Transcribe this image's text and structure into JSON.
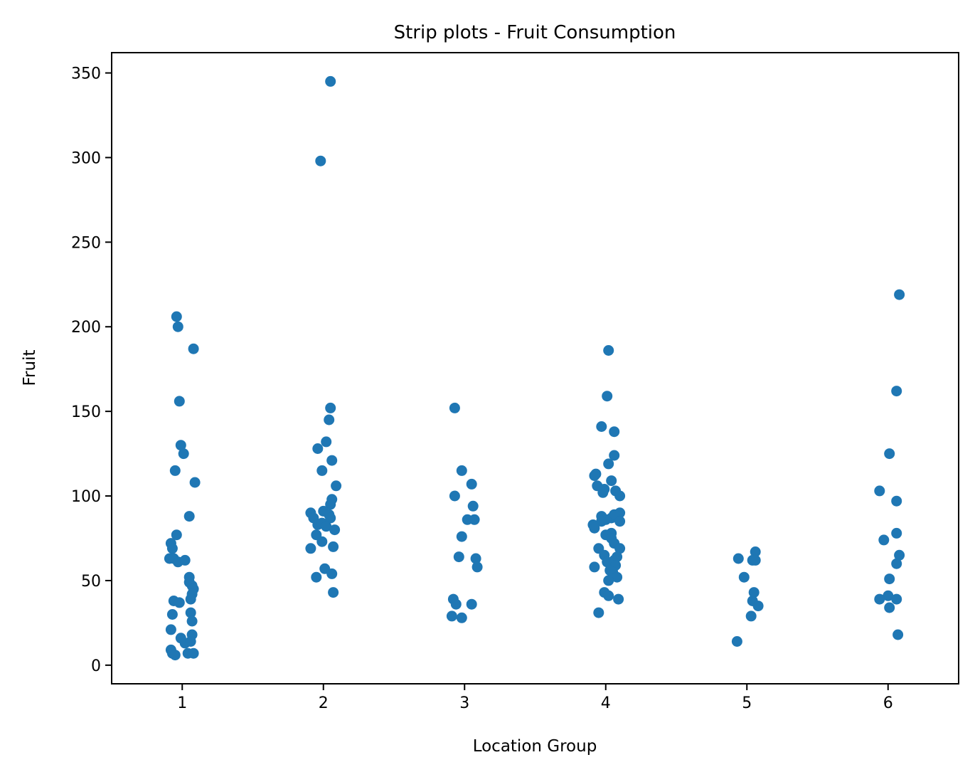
{
  "chart_data": {
    "type": "scatter",
    "subtype": "strip",
    "title": "Strip plots - Fruit Consumption",
    "xlabel": "Location Group",
    "ylabel": "Fruit",
    "categories": [
      "1",
      "2",
      "3",
      "4",
      "5",
      "6"
    ],
    "xlim": [
      0.5,
      6.5
    ],
    "ylim": [
      -11,
      362
    ],
    "yticks": [
      0,
      50,
      100,
      150,
      200,
      250,
      300,
      350
    ],
    "grid": false,
    "legend": false,
    "point_color": "#1f77b4",
    "points": [
      {
        "x": 0.96,
        "y": 206
      },
      {
        "x": 0.97,
        "y": 200
      },
      {
        "x": 1.08,
        "y": 187
      },
      {
        "x": 0.98,
        "y": 156
      },
      {
        "x": 0.99,
        "y": 130
      },
      {
        "x": 1.01,
        "y": 125
      },
      {
        "x": 0.95,
        "y": 115
      },
      {
        "x": 1.09,
        "y": 108
      },
      {
        "x": 1.05,
        "y": 88
      },
      {
        "x": 0.96,
        "y": 77
      },
      {
        "x": 0.92,
        "y": 72
      },
      {
        "x": 0.93,
        "y": 69
      },
      {
        "x": 0.91,
        "y": 63
      },
      {
        "x": 0.94,
        "y": 63
      },
      {
        "x": 0.97,
        "y": 61
      },
      {
        "x": 1.02,
        "y": 62
      },
      {
        "x": 1.05,
        "y": 52
      },
      {
        "x": 1.05,
        "y": 49
      },
      {
        "x": 1.07,
        "y": 47
      },
      {
        "x": 1.08,
        "y": 45
      },
      {
        "x": 1.07,
        "y": 42
      },
      {
        "x": 1.06,
        "y": 39
      },
      {
        "x": 0.94,
        "y": 38
      },
      {
        "x": 0.98,
        "y": 37
      },
      {
        "x": 1.06,
        "y": 31
      },
      {
        "x": 0.93,
        "y": 30
      },
      {
        "x": 1.07,
        "y": 26
      },
      {
        "x": 0.92,
        "y": 21
      },
      {
        "x": 1.07,
        "y": 18
      },
      {
        "x": 0.99,
        "y": 16
      },
      {
        "x": 1.02,
        "y": 13
      },
      {
        "x": 1.06,
        "y": 14
      },
      {
        "x": 0.92,
        "y": 9
      },
      {
        "x": 0.93,
        "y": 7
      },
      {
        "x": 0.95,
        "y": 6
      },
      {
        "x": 1.04,
        "y": 7
      },
      {
        "x": 1.08,
        "y": 7
      },
      {
        "x": 2.05,
        "y": 345
      },
      {
        "x": 1.98,
        "y": 298
      },
      {
        "x": 2.05,
        "y": 152
      },
      {
        "x": 2.04,
        "y": 145
      },
      {
        "x": 2.02,
        "y": 132
      },
      {
        "x": 1.96,
        "y": 128
      },
      {
        "x": 2.06,
        "y": 121
      },
      {
        "x": 1.99,
        "y": 115
      },
      {
        "x": 2.09,
        "y": 106
      },
      {
        "x": 2.06,
        "y": 98
      },
      {
        "x": 2.05,
        "y": 95
      },
      {
        "x": 1.91,
        "y": 90
      },
      {
        "x": 2.0,
        "y": 91
      },
      {
        "x": 2.04,
        "y": 89
      },
      {
        "x": 1.93,
        "y": 87
      },
      {
        "x": 2.05,
        "y": 87
      },
      {
        "x": 1.96,
        "y": 83
      },
      {
        "x": 1.99,
        "y": 84
      },
      {
        "x": 2.02,
        "y": 82
      },
      {
        "x": 2.08,
        "y": 80
      },
      {
        "x": 1.95,
        "y": 77
      },
      {
        "x": 1.99,
        "y": 73
      },
      {
        "x": 1.91,
        "y": 69
      },
      {
        "x": 2.07,
        "y": 70
      },
      {
        "x": 2.01,
        "y": 57
      },
      {
        "x": 2.06,
        "y": 54
      },
      {
        "x": 1.95,
        "y": 52
      },
      {
        "x": 2.07,
        "y": 43
      },
      {
        "x": 2.93,
        "y": 152
      },
      {
        "x": 2.98,
        "y": 115
      },
      {
        "x": 3.05,
        "y": 107
      },
      {
        "x": 2.93,
        "y": 100
      },
      {
        "x": 3.06,
        "y": 94
      },
      {
        "x": 3.02,
        "y": 86
      },
      {
        "x": 3.07,
        "y": 86
      },
      {
        "x": 2.98,
        "y": 76
      },
      {
        "x": 2.96,
        "y": 64
      },
      {
        "x": 3.08,
        "y": 63
      },
      {
        "x": 3.09,
        "y": 58
      },
      {
        "x": 2.92,
        "y": 39
      },
      {
        "x": 2.94,
        "y": 36
      },
      {
        "x": 3.05,
        "y": 36
      },
      {
        "x": 2.91,
        "y": 29
      },
      {
        "x": 2.98,
        "y": 28
      },
      {
        "x": 4.02,
        "y": 186
      },
      {
        "x": 4.01,
        "y": 159
      },
      {
        "x": 3.97,
        "y": 141
      },
      {
        "x": 4.06,
        "y": 138
      },
      {
        "x": 4.06,
        "y": 124
      },
      {
        "x": 4.02,
        "y": 119
      },
      {
        "x": 3.92,
        "y": 112
      },
      {
        "x": 3.93,
        "y": 113
      },
      {
        "x": 4.04,
        "y": 109
      },
      {
        "x": 3.94,
        "y": 106
      },
      {
        "x": 3.98,
        "y": 102
      },
      {
        "x": 3.99,
        "y": 104
      },
      {
        "x": 4.07,
        "y": 103
      },
      {
        "x": 4.1,
        "y": 100
      },
      {
        "x": 4.1,
        "y": 90
      },
      {
        "x": 4.04,
        "y": 87
      },
      {
        "x": 4.06,
        "y": 89
      },
      {
        "x": 3.97,
        "y": 88
      },
      {
        "x": 4.0,
        "y": 86
      },
      {
        "x": 3.97,
        "y": 85
      },
      {
        "x": 4.1,
        "y": 85
      },
      {
        "x": 3.91,
        "y": 83
      },
      {
        "x": 3.92,
        "y": 81
      },
      {
        "x": 4.04,
        "y": 78
      },
      {
        "x": 4.0,
        "y": 77
      },
      {
        "x": 4.04,
        "y": 75
      },
      {
        "x": 4.06,
        "y": 72
      },
      {
        "x": 3.95,
        "y": 69
      },
      {
        "x": 4.1,
        "y": 69
      },
      {
        "x": 3.99,
        "y": 65
      },
      {
        "x": 4.08,
        "y": 64
      },
      {
        "x": 4.01,
        "y": 61
      },
      {
        "x": 4.06,
        "y": 62
      },
      {
        "x": 4.07,
        "y": 59
      },
      {
        "x": 3.92,
        "y": 58
      },
      {
        "x": 4.03,
        "y": 56
      },
      {
        "x": 4.05,
        "y": 55
      },
      {
        "x": 4.08,
        "y": 52
      },
      {
        "x": 4.02,
        "y": 50
      },
      {
        "x": 3.99,
        "y": 43
      },
      {
        "x": 4.02,
        "y": 41
      },
      {
        "x": 4.09,
        "y": 39
      },
      {
        "x": 3.95,
        "y": 31
      },
      {
        "x": 5.06,
        "y": 67
      },
      {
        "x": 4.94,
        "y": 63
      },
      {
        "x": 5.04,
        "y": 62
      },
      {
        "x": 5.06,
        "y": 62
      },
      {
        "x": 4.98,
        "y": 52
      },
      {
        "x": 5.05,
        "y": 43
      },
      {
        "x": 5.04,
        "y": 38
      },
      {
        "x": 5.08,
        "y": 35
      },
      {
        "x": 5.03,
        "y": 29
      },
      {
        "x": 4.93,
        "y": 14
      },
      {
        "x": 6.08,
        "y": 219
      },
      {
        "x": 6.06,
        "y": 162
      },
      {
        "x": 6.01,
        "y": 125
      },
      {
        "x": 5.94,
        "y": 103
      },
      {
        "x": 6.06,
        "y": 97
      },
      {
        "x": 6.06,
        "y": 78
      },
      {
        "x": 5.97,
        "y": 74
      },
      {
        "x": 6.08,
        "y": 65
      },
      {
        "x": 6.06,
        "y": 60
      },
      {
        "x": 6.01,
        "y": 51
      },
      {
        "x": 6.0,
        "y": 41
      },
      {
        "x": 5.94,
        "y": 39
      },
      {
        "x": 6.06,
        "y": 39
      },
      {
        "x": 6.01,
        "y": 34
      },
      {
        "x": 6.07,
        "y": 18
      }
    ]
  }
}
